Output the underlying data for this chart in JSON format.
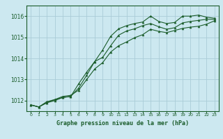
{
  "title": "Graphe pression niveau de la mer (hPa)",
  "background_color": "#cce8f0",
  "grid_color": "#aaccd8",
  "line_color": "#1a5c2a",
  "ylim": [
    1011.5,
    1016.5
  ],
  "xlim": [
    -0.5,
    23.5
  ],
  "yticks": [
    1012,
    1013,
    1014,
    1015,
    1016
  ],
  "xticks": [
    0,
    1,
    2,
    3,
    4,
    5,
    6,
    7,
    8,
    9,
    10,
    11,
    12,
    13,
    14,
    15,
    16,
    17,
    18,
    19,
    20,
    21,
    22,
    23
  ],
  "series1": [
    1011.8,
    1011.7,
    1011.9,
    1012.05,
    1012.15,
    1012.2,
    1012.8,
    1013.35,
    1013.85,
    1014.4,
    1015.05,
    1015.4,
    1015.55,
    1015.65,
    1015.72,
    1016.0,
    1015.75,
    1015.65,
    1015.7,
    1016.0,
    1016.0,
    1016.05,
    1015.95,
    1015.9
  ],
  "series2": [
    1011.8,
    1011.7,
    1011.9,
    1012.0,
    1012.15,
    1012.2,
    1012.6,
    1013.2,
    1013.85,
    1014.05,
    1014.6,
    1015.1,
    1015.3,
    1015.4,
    1015.55,
    1015.65,
    1015.5,
    1015.38,
    1015.45,
    1015.68,
    1015.75,
    1015.8,
    1015.85,
    1015.85
  ],
  "series3": [
    1011.8,
    1011.7,
    1011.95,
    1012.05,
    1012.2,
    1012.25,
    1012.5,
    1013.0,
    1013.5,
    1013.8,
    1014.3,
    1014.6,
    1014.78,
    1014.98,
    1015.12,
    1015.38,
    1015.28,
    1015.22,
    1015.32,
    1015.42,
    1015.48,
    1015.52,
    1015.62,
    1015.78
  ]
}
